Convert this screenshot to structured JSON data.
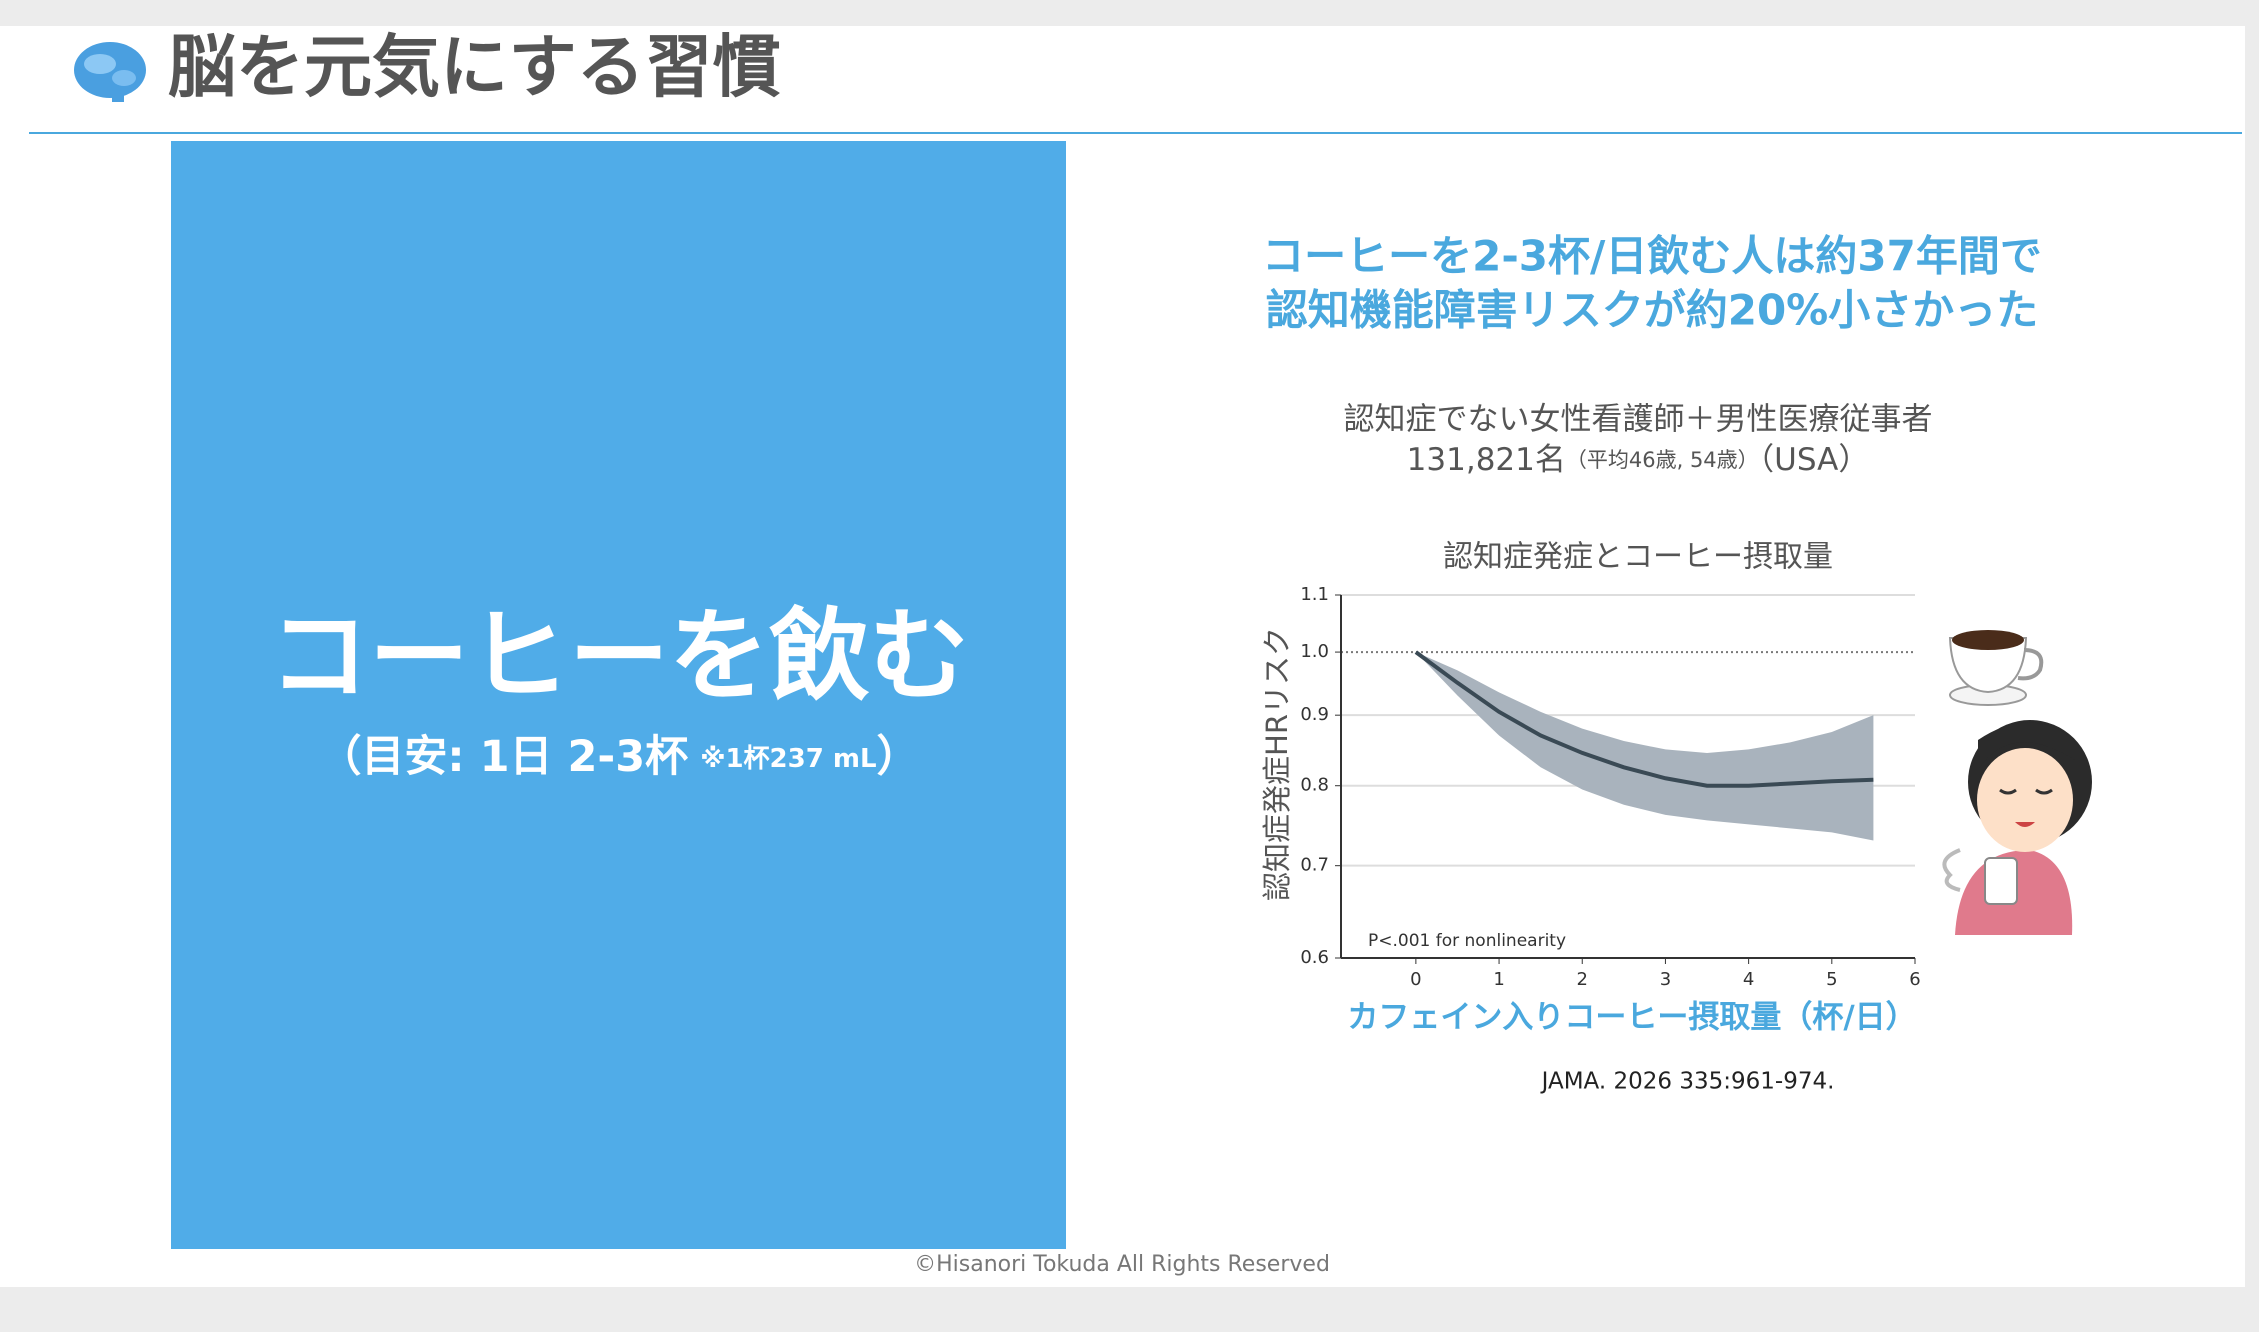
{
  "header": {
    "title": "脳を元気にする習慣"
  },
  "panel": {
    "heading": "コーヒーを飲む",
    "note_main": "（目安: 1日 2-3杯",
    "note_small": "※1杯237 mL",
    "note_close": "）"
  },
  "summary": {
    "line1": "コーヒーを2-3杯/日飲む人は約37年間で",
    "line2": "認知機能障害リスクが約20%小さかった"
  },
  "study": {
    "line1": "認知症でない女性看護師＋男性医療従事者",
    "count": "131,821名",
    "ages": "（平均46歳, 54歳）",
    "country": "（USA）"
  },
  "chart": {
    "type": "line",
    "title": "認知症発症とコーヒー摂取量",
    "x_label": "カフェイン入りコーヒー摂取量（杯/日）",
    "y_label": "認知症発症HRリスク",
    "annotation": "P<.001 for nonlinearity",
    "x": [
      0,
      0.5,
      1,
      1.5,
      2,
      2.5,
      3,
      3.5,
      4,
      4.5,
      5,
      5.5
    ],
    "values": [
      1.0,
      0.95,
      0.905,
      0.87,
      0.845,
      0.825,
      0.81,
      0.8,
      0.8,
      0.803,
      0.806,
      0.808
    ],
    "lower": [
      1.0,
      0.93,
      0.87,
      0.825,
      0.795,
      0.775,
      0.762,
      0.755,
      0.75,
      0.745,
      0.74,
      0.73
    ],
    "upper": [
      1.0,
      0.97,
      0.935,
      0.905,
      0.88,
      0.862,
      0.85,
      0.845,
      0.85,
      0.86,
      0.875,
      0.9
    ],
    "color": "#3a4a55",
    "band_color": "#a9b3bd",
    "xlim": [
      -0.9,
      6
    ],
    "xticks": [
      0,
      1,
      2,
      3,
      4,
      5,
      6
    ],
    "ylim": [
      0.6,
      1.1
    ],
    "yticks": [
      0.6,
      0.7,
      0.8,
      0.9,
      {
        "value": 1,
        "label": "1.0"
      },
      1.1
    ],
    "y_log": true,
    "reference_line": 1
  },
  "source": "JAMA. 2026 335:961-974.",
  "footer": "©Hisanori Tokuda All Rights Reserved"
}
